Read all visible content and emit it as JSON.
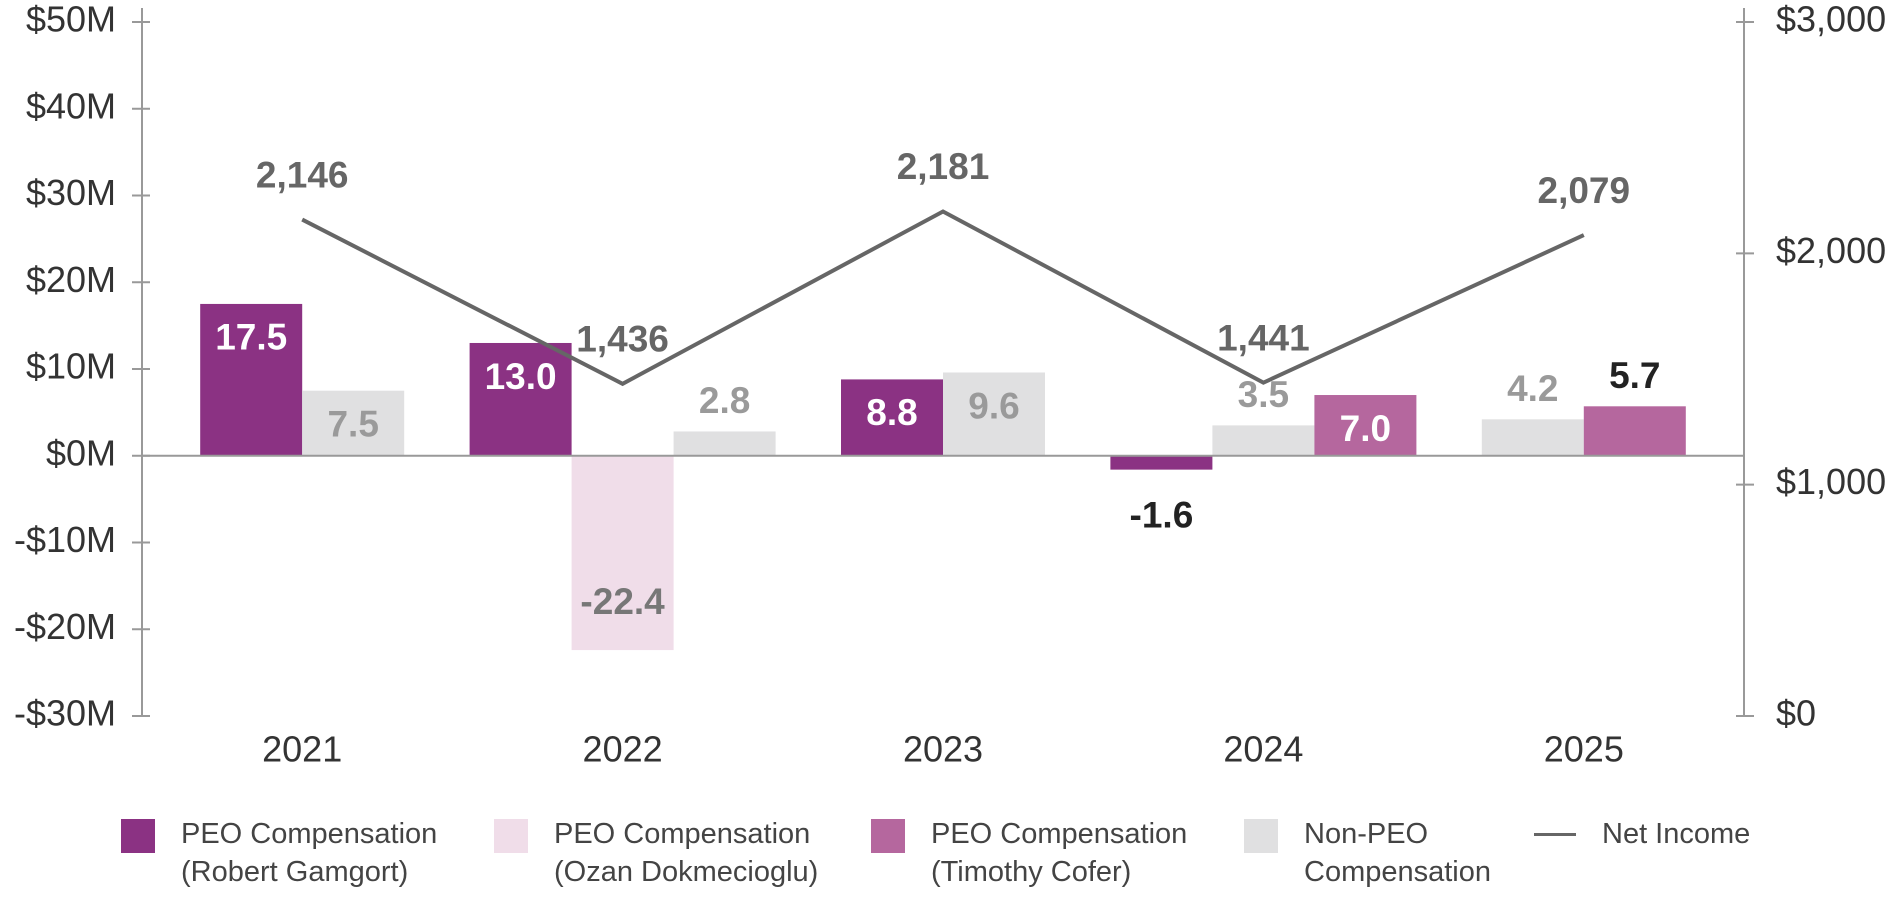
{
  "chart_data": {
    "type": "bar",
    "categories": [
      "2021",
      "2022",
      "2023",
      "2024",
      "2025"
    ],
    "series": [
      {
        "name": "PEO Compensation (Robert Gamgort)",
        "color": "#8b3283",
        "values": [
          17.5,
          13.0,
          8.8,
          -1.6,
          null
        ],
        "value_labels": [
          "17.5",
          "13.0",
          "8.8",
          "-1.6",
          null
        ]
      },
      {
        "name": "PEO Compensation (Ozan Dokmecioglu)",
        "color": "#f0dde9",
        "values": [
          null,
          -22.4,
          null,
          null,
          null
        ],
        "value_labels": [
          null,
          "-22.4",
          null,
          null,
          null
        ]
      },
      {
        "name": "PEO Compensation (Timothy Cofer)",
        "color": "#b5679e",
        "values": [
          null,
          null,
          null,
          7.0,
          5.7
        ],
        "value_labels": [
          null,
          null,
          null,
          "7.0",
          "5.7"
        ]
      },
      {
        "name": "Non-PEO Compensation",
        "color": "#e0e0e1",
        "values": [
          7.5,
          2.8,
          9.6,
          3.5,
          4.2
        ]
      },
      {
        "name": "Net Income",
        "type": "line",
        "axis": "y2",
        "color": "#666666",
        "values": [
          2146,
          1436,
          2181,
          1441,
          2079
        ],
        "value_labels": [
          "2,146",
          "1,436",
          "2,181",
          "1,441",
          "2,079"
        ]
      }
    ],
    "ylim": [
      -30,
      50
    ],
    "yticks": [
      {
        "value": -30,
        "label": "-$30M"
      },
      {
        "value": -20,
        "label": "-$20M"
      },
      {
        "value": -10,
        "label": "-$10M"
      },
      {
        "value": 0,
        "label": "$0M"
      },
      {
        "value": 10,
        "label": "$10M"
      },
      {
        "value": 20,
        "label": "$20M"
      },
      {
        "value": 30,
        "label": "$30M"
      },
      {
        "value": 40,
        "label": "$40M"
      },
      {
        "value": 50,
        "label": "$50M"
      }
    ],
    "y2lim": [
      0,
      3000
    ],
    "y2ticks": [
      {
        "value": 0,
        "label": "$0"
      },
      {
        "value": 1000,
        "label": "$1,000"
      },
      {
        "value": 2000,
        "label": "$2,000"
      },
      {
        "value": 3000,
        "label": "$3,000"
      }
    ],
    "grid": false,
    "legend": "bottom"
  }
}
